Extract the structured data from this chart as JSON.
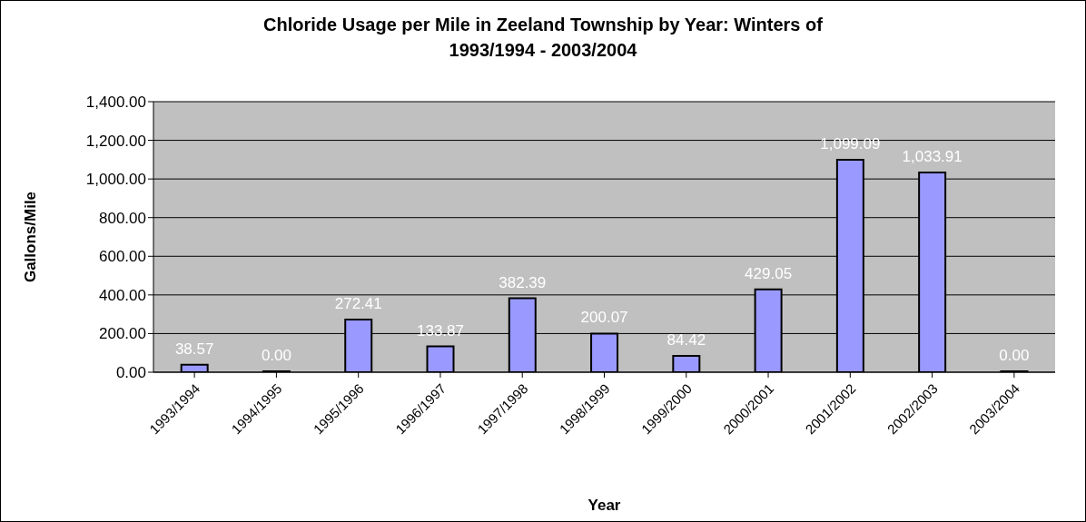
{
  "chart_data": {
    "type": "bar",
    "title": "Chloride Usage per Mile in Zeeland Township by Year: Winters of 1993/1994 - 2003/2004",
    "xlabel": "Year",
    "ylabel": "Gallons/Mile",
    "categories": [
      "1993/1994",
      "1994/1995",
      "1995/1996",
      "1996/1997",
      "1997/1998",
      "1998/1999",
      "1999/2000",
      "2000/2001",
      "2001/2002",
      "2002/2003",
      "2003/2004"
    ],
    "values": [
      38.57,
      0,
      272.41,
      133.87,
      382.39,
      200.07,
      84.42,
      429.05,
      1099.09,
      1033.91,
      0
    ],
    "value_labels": [
      "38.57",
      "0.00",
      "272.41",
      "133.87",
      "382.39",
      "200.07",
      "84.42",
      "429.05",
      "1,099.09",
      "1,033.91",
      "0.00"
    ],
    "color": "#9999ff",
    "ylim": [
      0,
      1400
    ],
    "yticks": [
      {
        "value": 0,
        "label": "0.00"
      },
      {
        "value": 200,
        "label": "200.00"
      },
      {
        "value": 400,
        "label": "400.00"
      },
      {
        "value": 600,
        "label": "600.00"
      },
      {
        "value": 800,
        "label": "800.00"
      },
      {
        "value": 1000,
        "label": "1,000.00"
      },
      {
        "value": 1200,
        "label": "1,200.00"
      },
      {
        "value": 1400,
        "label": "1,400.00"
      }
    ],
    "grid": "y",
    "legend": false
  }
}
